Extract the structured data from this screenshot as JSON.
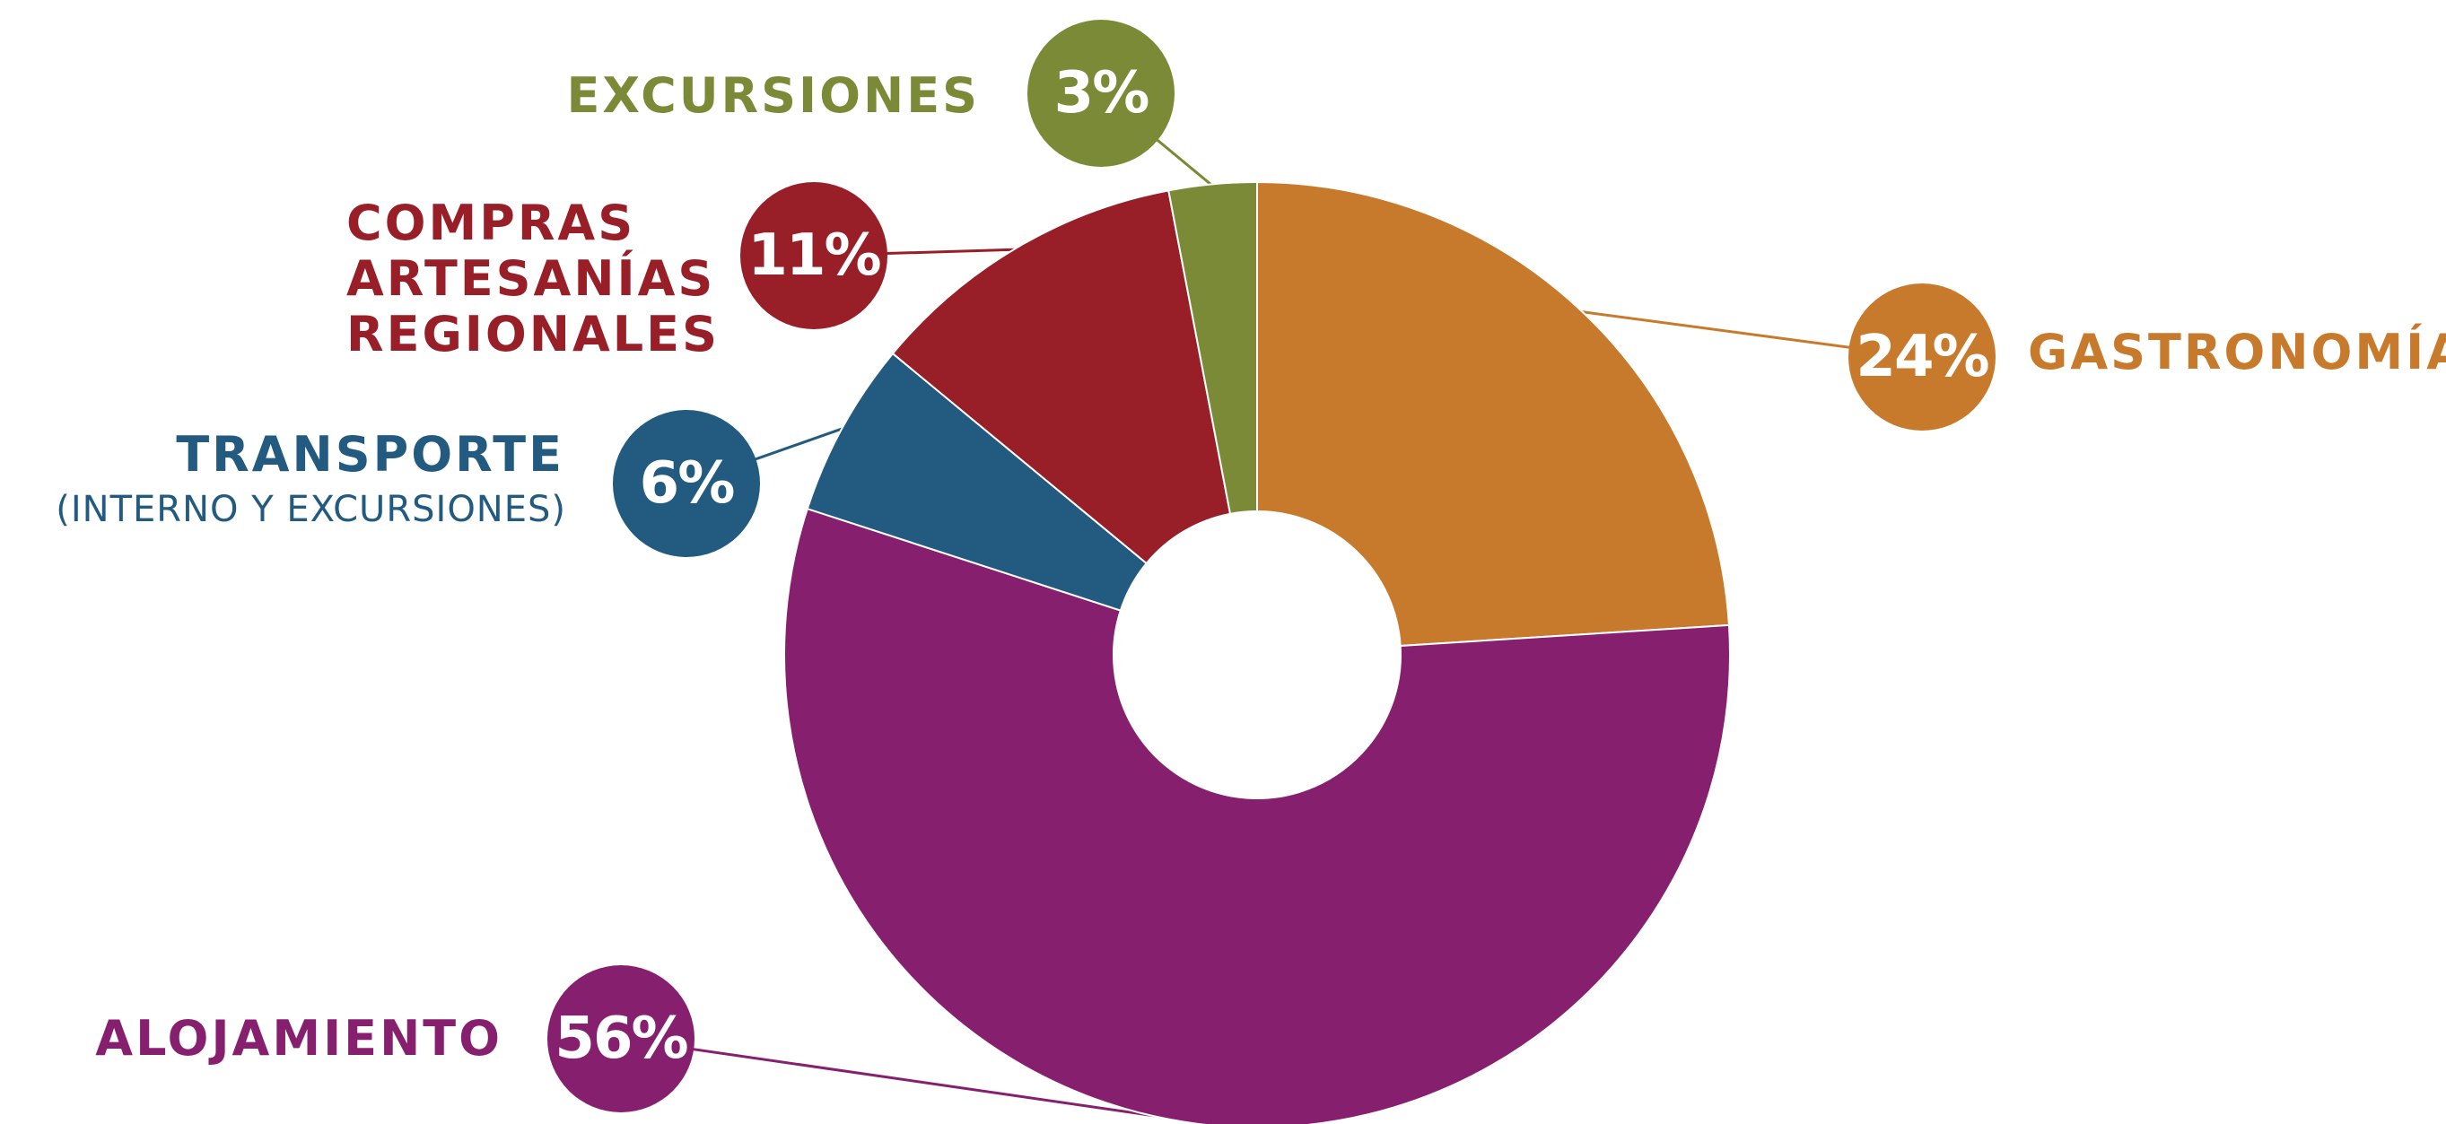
{
  "chart_data": {
    "type": "donut",
    "categories": [
      "GASTRONOMÍA",
      "ALOJAMIENTO",
      "TRANSPORTE",
      "COMPRAS ARTESANÍAS REGIONALES",
      "EXCURSIONES"
    ],
    "category_notes": [
      null,
      null,
      "(INTERNO Y EXCURSIONES)",
      null,
      null
    ],
    "values": [
      24,
      56,
      6,
      11,
      3
    ],
    "value_labels": [
      "24%",
      "56%",
      "6%",
      "11%",
      "3%"
    ],
    "colors": [
      "#c87a2c",
      "#861f6e",
      "#225a80",
      "#981f28",
      "#7a8a36"
    ]
  }
}
